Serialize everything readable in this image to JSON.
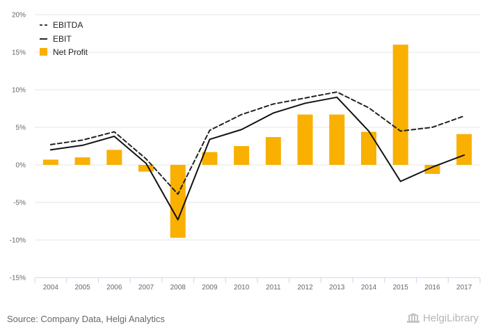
{
  "chart_data": {
    "type": "bar+line",
    "categories": [
      "2004",
      "2005",
      "2006",
      "2007",
      "2008",
      "2009",
      "2010",
      "2011",
      "2012",
      "2013",
      "2014",
      "2015",
      "2016",
      "2017"
    ],
    "series": [
      {
        "name": "EBITDA",
        "kind": "line",
        "style": "dashed",
        "color": "#222222",
        "values": [
          2.7,
          3.3,
          4.4,
          0.8,
          -3.9,
          4.6,
          6.7,
          8.1,
          8.9,
          9.7,
          7.6,
          4.5,
          5.0,
          6.5
        ]
      },
      {
        "name": "EBIT",
        "kind": "line",
        "style": "solid",
        "color": "#111111",
        "values": [
          2.0,
          2.6,
          3.8,
          0.2,
          -7.3,
          3.4,
          4.7,
          6.9,
          8.2,
          9.0,
          4.5,
          -2.2,
          -0.3,
          1.3
        ]
      },
      {
        "name": "Net Profit",
        "kind": "bar",
        "color": "#f9b000",
        "values": [
          0.7,
          1.0,
          2.0,
          -0.9,
          -9.7,
          1.7,
          2.5,
          3.7,
          6.7,
          6.7,
          4.4,
          16.0,
          -1.2,
          4.1
        ]
      }
    ],
    "yticks": [
      "20%",
      "15%",
      "10%",
      "5%",
      "0%",
      "-5%",
      "-10%",
      "-15%"
    ],
    "ylim": [
      -15,
      20
    ],
    "legend_position": "top-left"
  },
  "footer": {
    "source": "Source: Company Data, Helgi Analytics",
    "brand": "HelgiLibrary"
  }
}
